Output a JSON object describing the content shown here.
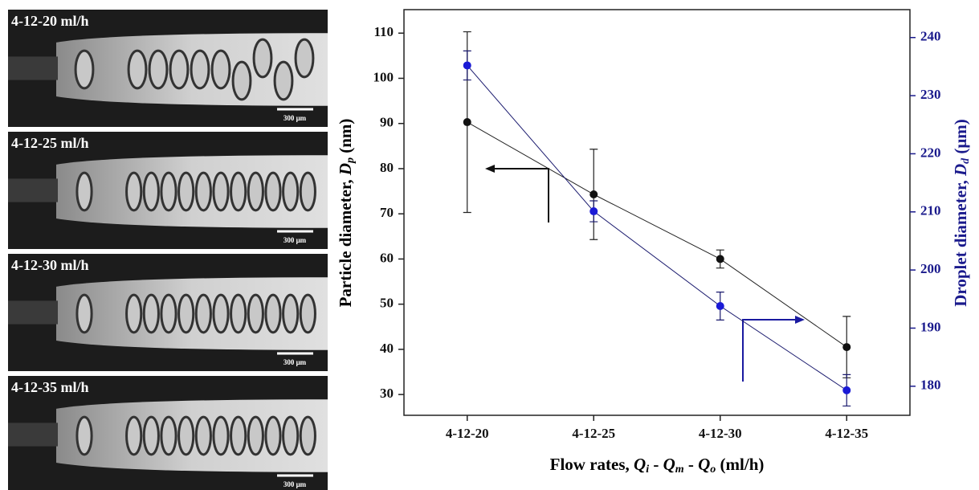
{
  "panels": [
    {
      "label": "4-12-20 ml/h",
      "scale": "300 μm"
    },
    {
      "label": "4-12-25 ml/h",
      "scale": "300 μm"
    },
    {
      "label": "4-12-30 ml/h",
      "scale": "300 μm"
    },
    {
      "label": "4-12-35 ml/h",
      "scale": "300 μm"
    }
  ],
  "chart_data": {
    "type": "line",
    "x_label": [
      "Flow rates, ",
      "Q",
      "i",
      " - ",
      "Q",
      "m",
      " - ",
      "Q",
      "o",
      " (ml/h)"
    ],
    "y_label": [
      "Particle diameter, ",
      "D",
      "p",
      " (nm)"
    ],
    "y2_label": [
      "Droplet diameter, ",
      "D",
      "d",
      " (μm)"
    ],
    "categories": [
      "4-12-20",
      "4-12-25",
      "4-12-30",
      "4-12-35"
    ],
    "ylim": [
      25.4,
      115.2
    ],
    "yticks": [
      30,
      40,
      50,
      60,
      70,
      80,
      90,
      100,
      110
    ],
    "y2lim": [
      175,
      244.8
    ],
    "y2ticks": [
      180,
      190,
      200,
      210,
      220,
      230,
      240
    ],
    "series": [
      {
        "color": "#111111",
        "line_color": "#222222",
        "values": [
          90.3,
          74.3,
          60,
          40.5
        ],
        "errors": [
          20,
          10,
          2,
          6.8
        ]
      },
      {
        "color": "#1a1ad6",
        "line_color": "#1a1a6e",
        "axis": "y2",
        "values": [
          235.2,
          210.1,
          193.8,
          179.3
        ],
        "errors": [
          2.5,
          1.8,
          2.4,
          2.7
        ]
      }
    ],
    "y2_color": "#1a1a8c"
  }
}
